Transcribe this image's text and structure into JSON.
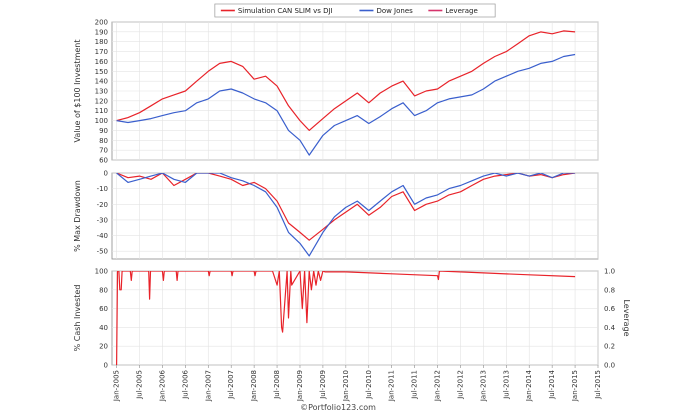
{
  "chart_data": [
    {
      "type": "line",
      "ylabel": "Value of $100 Investment",
      "ylim": [
        60,
        200
      ],
      "yticks": [
        60,
        70,
        80,
        90,
        100,
        110,
        120,
        130,
        140,
        150,
        160,
        170,
        180,
        190,
        200
      ],
      "grid": true,
      "series": [
        {
          "name": "Simulation CAN SLIM vs DJI",
          "color": "#e8232a",
          "x": [
            2005.0,
            2005.25,
            2005.5,
            2005.75,
            2006.0,
            2006.25,
            2006.5,
            2006.75,
            2007.0,
            2007.25,
            2007.5,
            2007.75,
            2008.0,
            2008.25,
            2008.5,
            2008.75,
            2009.0,
            2009.2,
            2009.5,
            2009.75,
            2010.0,
            2010.25,
            2010.5,
            2010.75,
            2011.0,
            2011.25,
            2011.5,
            2011.75,
            2012.0,
            2012.25,
            2012.5,
            2012.75,
            2013.0,
            2013.25,
            2013.5,
            2013.75,
            2014.0,
            2014.25,
            2014.5,
            2014.75,
            2015.0
          ],
          "values": [
            100,
            103,
            108,
            115,
            122,
            126,
            130,
            140,
            150,
            158,
            160,
            155,
            142,
            145,
            135,
            115,
            100,
            90,
            102,
            112,
            120,
            128,
            118,
            128,
            135,
            140,
            125,
            130,
            132,
            140,
            145,
            150,
            158,
            165,
            170,
            178,
            186,
            190,
            188,
            191,
            190
          ]
        },
        {
          "name": "Dow Jones",
          "color": "#3a5fcd",
          "x": [
            2005.0,
            2005.25,
            2005.5,
            2005.75,
            2006.0,
            2006.25,
            2006.5,
            2006.75,
            2007.0,
            2007.25,
            2007.5,
            2007.75,
            2008.0,
            2008.25,
            2008.5,
            2008.75,
            2009.0,
            2009.2,
            2009.5,
            2009.75,
            2010.0,
            2010.25,
            2010.5,
            2010.75,
            2011.0,
            2011.25,
            2011.5,
            2011.75,
            2012.0,
            2012.25,
            2012.5,
            2012.75,
            2013.0,
            2013.25,
            2013.5,
            2013.75,
            2014.0,
            2014.25,
            2014.5,
            2014.75,
            2015.0
          ],
          "values": [
            100,
            98,
            100,
            102,
            105,
            108,
            110,
            118,
            122,
            130,
            132,
            128,
            122,
            118,
            110,
            90,
            80,
            65,
            85,
            95,
            100,
            105,
            97,
            104,
            112,
            118,
            105,
            110,
            118,
            122,
            124,
            126,
            132,
            140,
            145,
            150,
            153,
            158,
            160,
            165,
            167
          ]
        }
      ]
    },
    {
      "type": "line",
      "ylabel": "% Max Drawdown",
      "ylim": [
        -55,
        0
      ],
      "yticks": [
        -50,
        -40,
        -30,
        -20,
        -10,
        0
      ],
      "grid": true,
      "series": [
        {
          "name": "Simulation CAN SLIM vs DJI",
          "color": "#e8232a",
          "x": [
            2005.0,
            2005.25,
            2005.5,
            2005.75,
            2006.0,
            2006.25,
            2006.5,
            2006.75,
            2007.0,
            2007.25,
            2007.5,
            2007.75,
            2008.0,
            2008.25,
            2008.5,
            2008.75,
            2009.0,
            2009.2,
            2009.5,
            2009.75,
            2010.0,
            2010.25,
            2010.5,
            2010.75,
            2011.0,
            2011.25,
            2011.5,
            2011.75,
            2012.0,
            2012.25,
            2012.5,
            2012.75,
            2013.0,
            2013.25,
            2013.5,
            2013.75,
            2014.0,
            2014.25,
            2014.5,
            2014.75,
            2015.0
          ],
          "values": [
            0,
            -3,
            -2,
            -4,
            0,
            -8,
            -4,
            0,
            0,
            -2,
            -4,
            -8,
            -6,
            -10,
            -18,
            -32,
            -38,
            -43,
            -36,
            -30,
            -25,
            -20,
            -27,
            -22,
            -15,
            -12,
            -24,
            -20,
            -18,
            -14,
            -12,
            -8,
            -4,
            -2,
            -1,
            0,
            -2,
            -1,
            -3,
            -1,
            0
          ]
        },
        {
          "name": "Dow Jones",
          "color": "#3a5fcd",
          "x": [
            2005.0,
            2005.25,
            2005.5,
            2005.75,
            2006.0,
            2006.25,
            2006.5,
            2006.75,
            2007.0,
            2007.25,
            2007.5,
            2007.75,
            2008.0,
            2008.25,
            2008.5,
            2008.75,
            2009.0,
            2009.2,
            2009.5,
            2009.75,
            2010.0,
            2010.25,
            2010.5,
            2010.75,
            2011.0,
            2011.25,
            2011.5,
            2011.75,
            2012.0,
            2012.25,
            2012.5,
            2012.75,
            2013.0,
            2013.25,
            2013.5,
            2013.75,
            2014.0,
            2014.25,
            2014.5,
            2014.75,
            2015.0
          ],
          "values": [
            0,
            -6,
            -4,
            -2,
            0,
            -4,
            -6,
            0,
            0,
            0,
            -3,
            -5,
            -8,
            -12,
            -22,
            -38,
            -45,
            -53,
            -38,
            -28,
            -22,
            -18,
            -24,
            -18,
            -12,
            -8,
            -20,
            -16,
            -14,
            -10,
            -8,
            -5,
            -2,
            0,
            -2,
            0,
            -2,
            0,
            -3,
            0,
            0
          ]
        }
      ]
    },
    {
      "type": "line",
      "ylabel": "% Cash Invested",
      "y2label": "Leverage",
      "ylim": [
        0,
        100
      ],
      "yticks": [
        0,
        20,
        40,
        60,
        80,
        100
      ],
      "y2lim": [
        0,
        1.0
      ],
      "y2ticks": [
        "0.0",
        "0.2",
        "0.4",
        "0.6",
        "0.8",
        "1.0"
      ],
      "grid": true,
      "series": [
        {
          "name": "Simulation CAN SLIM vs DJI",
          "color": "#e8232a",
          "x": [
            2005.0,
            2005.02,
            2005.05,
            2005.07,
            2005.1,
            2005.12,
            2005.3,
            2005.32,
            2005.34,
            2005.7,
            2005.72,
            2005.74,
            2006.0,
            2006.02,
            2006.04,
            2006.3,
            2006.32,
            2006.34,
            2007.0,
            2007.02,
            2007.04,
            2007.5,
            2007.52,
            2007.54,
            2008.0,
            2008.02,
            2008.04,
            2008.4,
            2008.5,
            2008.55,
            2008.6,
            2008.62,
            2008.72,
            2008.75,
            2008.8,
            2008.82,
            2009.0,
            2009.05,
            2009.1,
            2009.15,
            2009.2,
            2009.25,
            2009.3,
            2009.35,
            2009.4,
            2009.45,
            2009.5,
            2009.55,
            2010.0,
            2011.0,
            2012.0,
            2012.02,
            2012.04,
            2013.0,
            2014.0,
            2015.0
          ],
          "values": [
            0,
            100,
            100,
            80,
            80,
            100,
            100,
            90,
            100,
            100,
            70,
            100,
            100,
            90,
            100,
            100,
            90,
            100,
            100,
            95,
            100,
            100,
            95,
            100,
            100,
            95,
            100,
            100,
            85,
            100,
            40,
            35,
            100,
            50,
            100,
            85,
            100,
            60,
            100,
            45,
            100,
            80,
            100,
            85,
            100,
            90,
            100,
            99,
            99,
            97,
            95,
            91,
            100,
            98,
            96,
            94
          ]
        }
      ]
    }
  ],
  "x_axis": {
    "ticks": [
      {
        "label": "Jan-2005",
        "x": 2005.0
      },
      {
        "label": "Jul-2005",
        "x": 2005.5
      },
      {
        "label": "Jan-2006",
        "x": 2006.0
      },
      {
        "label": "Jul-2006",
        "x": 2006.5
      },
      {
        "label": "Jan-2007",
        "x": 2007.0
      },
      {
        "label": "Jul-2007",
        "x": 2007.5
      },
      {
        "label": "Jan-2008",
        "x": 2008.0
      },
      {
        "label": "Jul-2008",
        "x": 2008.5
      },
      {
        "label": "Jan-2009",
        "x": 2009.0
      },
      {
        "label": "Jul-2009",
        "x": 2009.5
      },
      {
        "label": "Jan-2010",
        "x": 2010.0
      },
      {
        "label": "Jul-2010",
        "x": 2010.5
      },
      {
        "label": "Jan-2011",
        "x": 2011.0
      },
      {
        "label": "Jul-2011",
        "x": 2011.5
      },
      {
        "label": "Jan-2012",
        "x": 2012.0
      },
      {
        "label": "Jul-2012",
        "x": 2012.5
      },
      {
        "label": "Jan-2013",
        "x": 2013.0
      },
      {
        "label": "Jul-2013",
        "x": 2013.5
      },
      {
        "label": "Jan-2014",
        "x": 2014.0
      },
      {
        "label": "Jul-2014",
        "x": 2014.5
      },
      {
        "label": "Jan-2015",
        "x": 2015.0
      },
      {
        "label": "Jul-2015",
        "x": 2015.5
      }
    ]
  },
  "legend": {
    "placement": "top-center",
    "items": [
      {
        "label": "Simulation CAN SLIM vs DJI",
        "color": "#e8232a"
      },
      {
        "label": "Dow Jones",
        "color": "#3a5fcd"
      },
      {
        "label": "Leverage",
        "color": "#d6336c"
      }
    ]
  },
  "credit": "©Portfolio123.com"
}
